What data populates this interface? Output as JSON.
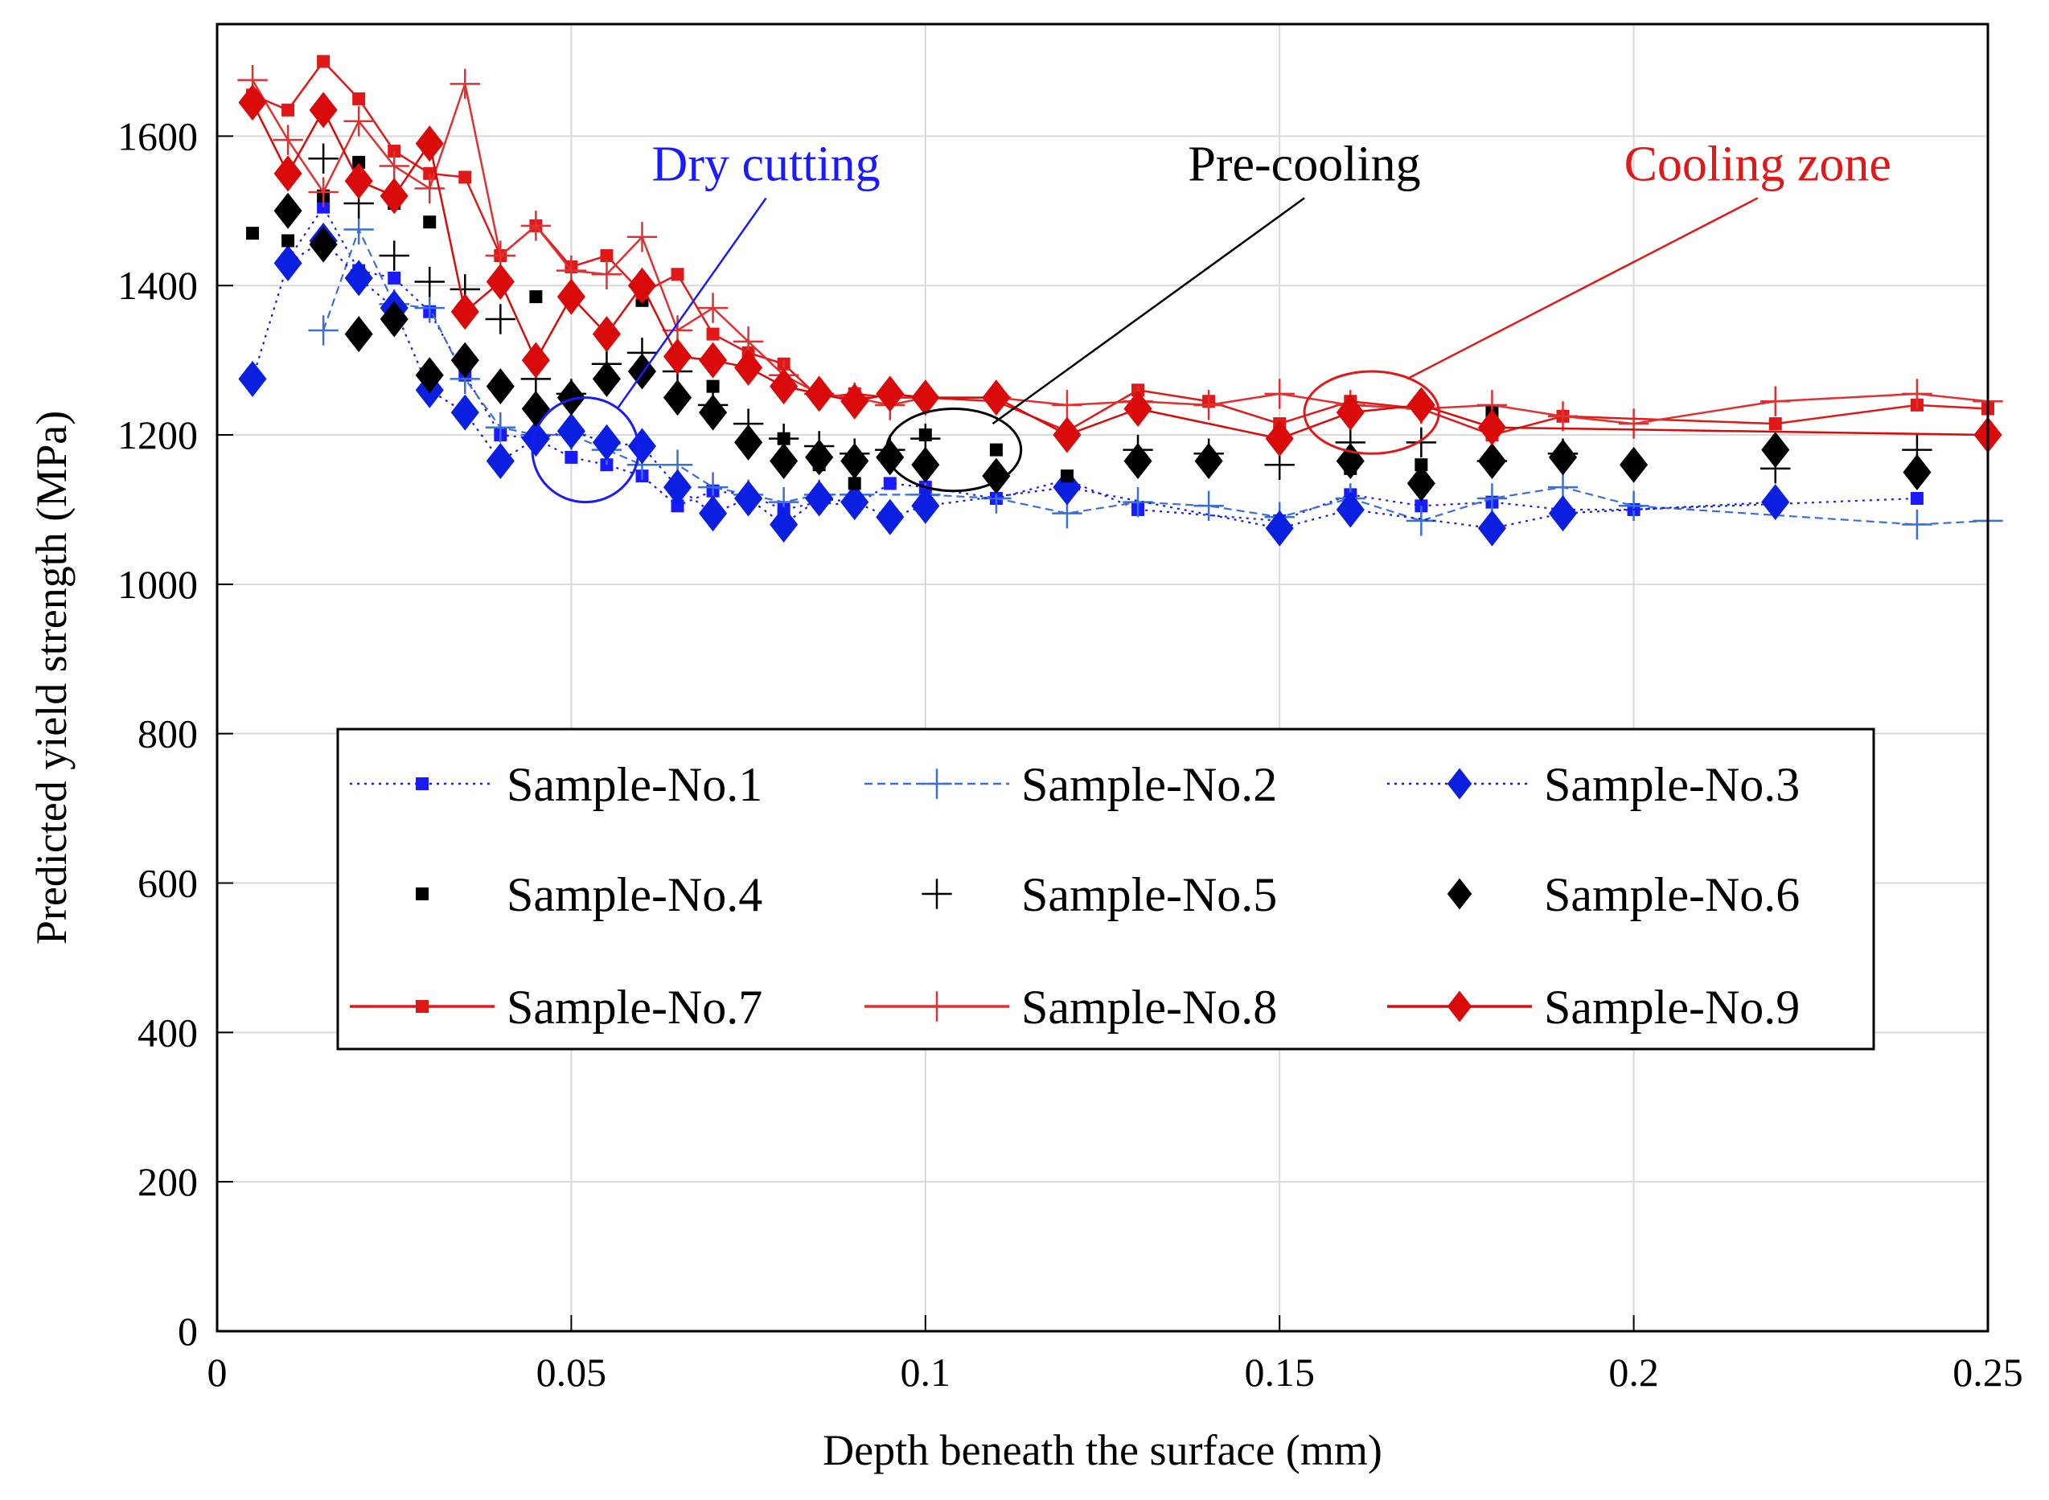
{
  "chart_data": {
    "type": "line",
    "xlabel": "Depth beneath the surface (mm)",
    "ylabel": "Predicted yield strength (MPa)",
    "xlim": [
      0,
      0.25
    ],
    "ylim": [
      0,
      1750
    ],
    "xticks": [
      0,
      0.05,
      0.1,
      0.15,
      0.2,
      0.25
    ],
    "xtick_labels": [
      "0",
      "0.05",
      "0.1",
      "0.15",
      "0.2",
      "0.25"
    ],
    "yticks": [
      0,
      200,
      400,
      600,
      800,
      1000,
      1200,
      1400,
      1600
    ],
    "ytick_labels": [
      "0",
      "200",
      "400",
      "600",
      "800",
      "1000",
      "1200",
      "1400",
      "1600"
    ],
    "grid": true,
    "legend_position": "lower-center",
    "series": [
      {
        "name": "Sample-No.1",
        "color": "#1a1aff",
        "line": "dotted",
        "marker": "square",
        "x": [
          0.01,
          0.015,
          0.02,
          0.025,
          0.03,
          0.035,
          0.04,
          0.045,
          0.05,
          0.055,
          0.06,
          0.065,
          0.07,
          0.075,
          0.08,
          0.085,
          0.09,
          0.095,
          0.1,
          0.11,
          0.12,
          0.13,
          0.15,
          0.16,
          0.17,
          0.18,
          0.19,
          0.2,
          0.24
        ],
        "y": [
          1435,
          1505,
          1420,
          1410,
          1365,
          1280,
          1200,
          1195,
          1170,
          1160,
          1145,
          1105,
          1125,
          1120,
          1100,
          1110,
          1105,
          1135,
          1130,
          1115,
          1140,
          1100,
          1085,
          1120,
          1105,
          1110,
          1100,
          1100,
          1115
        ]
      },
      {
        "name": "Sample-No.2",
        "color": "#3a6fd8",
        "line": "dashed",
        "marker": "plus",
        "x": [
          0.015,
          0.02,
          0.025,
          0.03,
          0.035,
          0.04,
          0.045,
          0.05,
          0.055,
          0.06,
          0.065,
          0.07,
          0.075,
          0.08,
          0.085,
          0.09,
          0.1,
          0.11,
          0.12,
          0.13,
          0.14,
          0.15,
          0.16,
          0.17,
          0.18,
          0.19,
          0.2,
          0.24,
          0.25
        ],
        "y": [
          1340,
          1475,
          1375,
          1370,
          1275,
          1210,
          1200,
          1200,
          1180,
          1160,
          1160,
          1130,
          1120,
          1110,
          1120,
          1120,
          1120,
          1115,
          1095,
          1110,
          1105,
          1090,
          1115,
          1085,
          1115,
          1130,
          1105,
          1080,
          1085
        ]
      },
      {
        "name": "Sample-No.3",
        "color": "#0a1fe0",
        "line": "dotted",
        "marker": "diamond",
        "x": [
          0.005,
          0.01,
          0.015,
          0.02,
          0.025,
          0.03,
          0.035,
          0.04,
          0.045,
          0.05,
          0.055,
          0.06,
          0.065,
          0.07,
          0.075,
          0.08,
          0.085,
          0.09,
          0.095,
          0.1,
          0.12,
          0.15,
          0.16,
          0.18,
          0.19,
          0.22
        ],
        "y": [
          1275,
          1430,
          1460,
          1410,
          1370,
          1260,
          1230,
          1165,
          1195,
          1205,
          1190,
          1185,
          1130,
          1095,
          1115,
          1080,
          1115,
          1110,
          1090,
          1105,
          1130,
          1075,
          1100,
          1075,
          1095,
          1110
        ]
      },
      {
        "name": "Sample-No.4",
        "color": "#000000",
        "line": "none",
        "marker": "square",
        "x": [
          0.005,
          0.01,
          0.015,
          0.02,
          0.025,
          0.03,
          0.04,
          0.045,
          0.06,
          0.07,
          0.08,
          0.085,
          0.09,
          0.1,
          0.11,
          0.12,
          0.16,
          0.17,
          0.18
        ],
        "y": [
          1470,
          1460,
          1520,
          1565,
          1510,
          1485,
          1400,
          1385,
          1380,
          1265,
          1195,
          1160,
          1135,
          1200,
          1180,
          1145,
          1155,
          1160,
          1230
        ]
      },
      {
        "name": "Sample-No.5",
        "color": "#000000",
        "line": "none",
        "marker": "plus",
        "x": [
          0.015,
          0.02,
          0.025,
          0.03,
          0.035,
          0.04,
          0.045,
          0.05,
          0.055,
          0.06,
          0.065,
          0.07,
          0.075,
          0.08,
          0.085,
          0.09,
          0.095,
          0.1,
          0.13,
          0.14,
          0.15,
          0.16,
          0.17,
          0.18,
          0.19,
          0.22,
          0.24
        ],
        "y": [
          1570,
          1510,
          1440,
          1405,
          1395,
          1355,
          1275,
          1255,
          1295,
          1310,
          1285,
          1240,
          1215,
          1195,
          1185,
          1175,
          1180,
          1195,
          1180,
          1175,
          1160,
          1190,
          1190,
          1165,
          1175,
          1155,
          1180
        ]
      },
      {
        "name": "Sample-No.6",
        "color": "#000000",
        "line": "none",
        "marker": "diamond",
        "x": [
          0.01,
          0.015,
          0.02,
          0.025,
          0.03,
          0.035,
          0.04,
          0.045,
          0.05,
          0.055,
          0.06,
          0.065,
          0.07,
          0.075,
          0.08,
          0.085,
          0.09,
          0.095,
          0.1,
          0.11,
          0.13,
          0.14,
          0.16,
          0.17,
          0.18,
          0.19,
          0.2,
          0.22,
          0.24
        ],
        "y": [
          1500,
          1455,
          1335,
          1355,
          1280,
          1300,
          1265,
          1235,
          1250,
          1275,
          1285,
          1250,
          1230,
          1190,
          1165,
          1170,
          1165,
          1170,
          1160,
          1145,
          1165,
          1165,
          1165,
          1135,
          1165,
          1170,
          1160,
          1180,
          1150
        ]
      },
      {
        "name": "Sample-No.7",
        "color": "#e01818",
        "line": "solid",
        "marker": "square",
        "x": [
          0.005,
          0.01,
          0.015,
          0.02,
          0.025,
          0.03,
          0.035,
          0.04,
          0.045,
          0.05,
          0.055,
          0.06,
          0.065,
          0.07,
          0.075,
          0.08,
          0.085,
          0.09,
          0.095,
          0.1,
          0.11,
          0.12,
          0.13,
          0.14,
          0.15,
          0.16,
          0.17,
          0.18,
          0.19,
          0.22,
          0.24,
          0.25
        ],
        "y": [
          1655,
          1635,
          1700,
          1650,
          1580,
          1550,
          1545,
          1440,
          1480,
          1425,
          1440,
          1390,
          1415,
          1335,
          1310,
          1295,
          1250,
          1255,
          1250,
          1250,
          1245,
          1205,
          1260,
          1245,
          1215,
          1245,
          1235,
          1200,
          1225,
          1215,
          1240,
          1235
        ]
      },
      {
        "name": "Sample-No.8",
        "color": "#e03030",
        "line": "solid",
        "marker": "plus",
        "x": [
          0.005,
          0.01,
          0.015,
          0.02,
          0.025,
          0.03,
          0.035,
          0.04,
          0.045,
          0.05,
          0.055,
          0.06,
          0.065,
          0.07,
          0.075,
          0.08,
          0.085,
          0.09,
          0.095,
          0.1,
          0.11,
          0.12,
          0.13,
          0.14,
          0.15,
          0.16,
          0.17,
          0.18,
          0.19,
          0.2,
          0.22,
          0.24,
          0.25
        ],
        "y": [
          1675,
          1595,
          1525,
          1620,
          1560,
          1530,
          1670,
          1440,
          1480,
          1420,
          1415,
          1465,
          1340,
          1370,
          1325,
          1280,
          1255,
          1250,
          1240,
          1250,
          1250,
          1240,
          1245,
          1240,
          1255,
          1240,
          1235,
          1240,
          1225,
          1215,
          1245,
          1255,
          1245
        ]
      },
      {
        "name": "Sample-No.9",
        "color": "#d80a0a",
        "line": "solid",
        "marker": "diamond",
        "x": [
          0.005,
          0.01,
          0.015,
          0.02,
          0.025,
          0.03,
          0.035,
          0.04,
          0.045,
          0.05,
          0.055,
          0.06,
          0.065,
          0.07,
          0.075,
          0.08,
          0.085,
          0.09,
          0.095,
          0.1,
          0.11,
          0.12,
          0.13,
          0.15,
          0.16,
          0.17,
          0.18,
          0.25
        ],
        "y": [
          1645,
          1550,
          1635,
          1540,
          1520,
          1590,
          1365,
          1405,
          1300,
          1385,
          1335,
          1400,
          1305,
          1300,
          1290,
          1265,
          1255,
          1245,
          1255,
          1250,
          1250,
          1200,
          1235,
          1195,
          1230,
          1240,
          1210,
          1200
        ]
      }
    ],
    "annotations": [
      {
        "text": "Dry cutting",
        "color": "#1a1aff",
        "cx": 0.052,
        "cy": 1180,
        "rx": 0.0075,
        "ry": 70,
        "tx": 0.0775,
        "ty": 1530,
        "lx": 0.0565,
        "ly": 1235
      },
      {
        "text": "Pre-cooling",
        "color": "#000000",
        "cx": 0.104,
        "cy": 1180,
        "rx": 0.0095,
        "ry": 55,
        "tx": 0.1535,
        "ty": 1530,
        "lx": 0.1095,
        "ly": 1215
      },
      {
        "text": "Cooling zone",
        "color": "#e01818",
        "cx": 0.163,
        "cy": 1230,
        "rx": 0.0095,
        "ry": 55,
        "tx": 0.2175,
        "ty": 1530,
        "lx": 0.168,
        "ly": 1275
      }
    ]
  }
}
